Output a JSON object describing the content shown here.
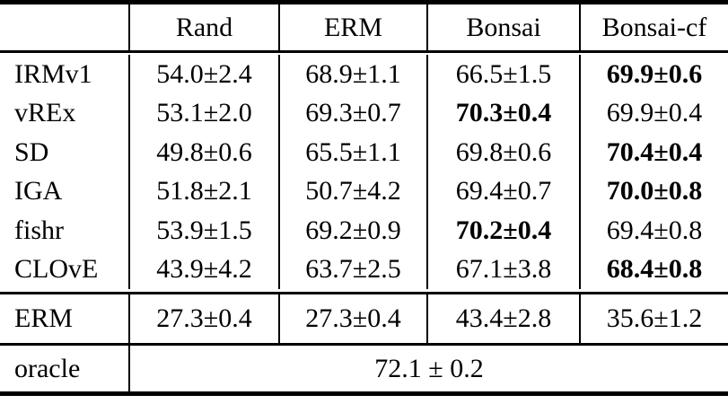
{
  "colors": {
    "text": "#000000",
    "background": "#ffffff",
    "rule": "#000000"
  },
  "header": {
    "columns": [
      "Rand",
      "ERM",
      "Bonsai",
      "Bonsai-cf"
    ]
  },
  "rows": [
    {
      "label": "IRMv1",
      "cells": [
        {
          "text": "54.0±2.4",
          "bold": false
        },
        {
          "text": "68.9±1.1",
          "bold": false
        },
        {
          "text": "66.5±1.5",
          "bold": false
        },
        {
          "text": "69.9±0.6",
          "bold": true
        }
      ]
    },
    {
      "label": "vREx",
      "cells": [
        {
          "text": "53.1±2.0",
          "bold": false
        },
        {
          "text": "69.3±0.7",
          "bold": false
        },
        {
          "text": "70.3±0.4",
          "bold": true
        },
        {
          "text": "69.9±0.4",
          "bold": false
        }
      ]
    },
    {
      "label": "SD",
      "cells": [
        {
          "text": "49.8±0.6",
          "bold": false
        },
        {
          "text": "65.5±1.1",
          "bold": false
        },
        {
          "text": "69.8±0.6",
          "bold": false
        },
        {
          "text": "70.4±0.4",
          "bold": true
        }
      ]
    },
    {
      "label": "IGA",
      "cells": [
        {
          "text": "51.8±2.1",
          "bold": false
        },
        {
          "text": "50.7±4.2",
          "bold": false
        },
        {
          "text": "69.4±0.7",
          "bold": false
        },
        {
          "text": "70.0±0.8",
          "bold": true
        }
      ]
    },
    {
      "label": "fishr",
      "cells": [
        {
          "text": "53.9±1.5",
          "bold": false
        },
        {
          "text": "69.2±0.9",
          "bold": false
        },
        {
          "text": "70.2±0.4",
          "bold": true
        },
        {
          "text": "69.4±0.8",
          "bold": false
        }
      ]
    },
    {
      "label": "CLOvE",
      "cells": [
        {
          "text": "43.9±4.2",
          "bold": false
        },
        {
          "text": "63.7±2.5",
          "bold": false
        },
        {
          "text": "67.1±3.8",
          "bold": false
        },
        {
          "text": "68.4±0.8",
          "bold": true
        }
      ]
    }
  ],
  "erm_row": {
    "label": "ERM",
    "cells": [
      {
        "text": "27.3±0.4",
        "bold": false
      },
      {
        "text": "27.3±0.4",
        "bold": false
      },
      {
        "text": "43.4±2.8",
        "bold": false
      },
      {
        "text": "35.6±1.2",
        "bold": false
      }
    ]
  },
  "oracle_row": {
    "label": "oracle",
    "value": "72.1 ± 0.2"
  }
}
